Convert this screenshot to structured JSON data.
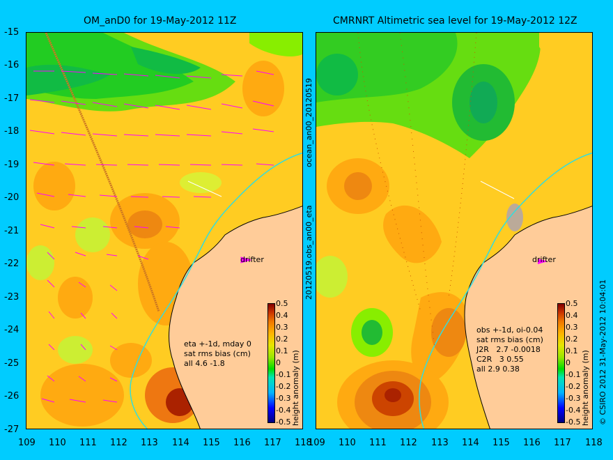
{
  "panels": {
    "left": {
      "title": "OM_anD0 for 19-May-2012 11Z",
      "annotation": "eta +-1d, mday 0\nsat rms bias (cm)\nall 4.6 -1.8",
      "drifter_label": "drifter"
    },
    "right": {
      "title": "CMRNRT Altimetric sea level  for 19-May-2012 12Z",
      "annotation": "obs +-1d, oi-0.04\nsat rms bias (cm)\nJ2R   2.7 -0.0018\nC2R   3 0.55\nall 2.9 0.38",
      "drifter_label": "drifter"
    }
  },
  "axes": {
    "y_ticks": [
      "-15",
      "-16",
      "-17",
      "-18",
      "-19",
      "-20",
      "-21",
      "-22",
      "-23",
      "-24",
      "-25",
      "-26",
      "-27"
    ],
    "x_ticks": [
      "109",
      "110",
      "111",
      "112",
      "113",
      "114",
      "115",
      "116",
      "117",
      "118"
    ]
  },
  "side_labels": {
    "top": "ocean_an00_20120519",
    "bottom": "20120519.obs_an00_eta",
    "credit": "© CSIRO 2012   31-May-2012 10:04:01"
  },
  "colorbar": {
    "ticks": [
      "0.5",
      "0.4",
      "0.3",
      "0.2",
      "0.1",
      "0",
      "-0.1",
      "-0.2",
      "-0.3",
      "-0.4",
      "-0.5"
    ],
    "label": "height anomaly (m)"
  },
  "colors": {
    "background": "#00ccff",
    "land": "#ffcc99",
    "coastline_cyan": "#33dddd",
    "vector_magenta": "#ff00ff"
  }
}
